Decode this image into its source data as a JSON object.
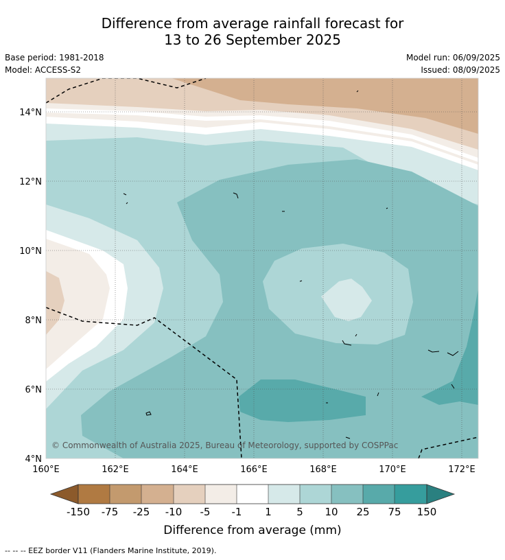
{
  "title": {
    "line1": "Difference from average rainfall forecast for",
    "line2": "13 to 26 September 2025"
  },
  "meta": {
    "base_period": "Base period: 1981-2018",
    "model": "Model: ACCESS-S2",
    "model_run": "Model run: 06/09/2025",
    "issued": "Issued: 08/09/2025"
  },
  "map": {
    "lat_ticks": [
      "4°N",
      "6°N",
      "8°N",
      "10°N",
      "12°N",
      "14°N"
    ],
    "lon_ticks": [
      "160°E",
      "162°E",
      "164°E",
      "166°E",
      "168°E",
      "170°E",
      "172°E"
    ],
    "copyright": "© Commonwealth of Australia 2025, Bureau of Meteorology, supported by COSPPac"
  },
  "legend": {
    "labels": [
      "-150",
      "-75",
      "-25",
      "-10",
      "-5",
      "-1",
      "1",
      "5",
      "10",
      "25",
      "75",
      "150"
    ],
    "colors": [
      "#8c5a2b",
      "#b07a42",
      "#c39a6e",
      "#d4b090",
      "#e5d0be",
      "#f3ede7",
      "#ffffff",
      "#d6e9e9",
      "#add6d6",
      "#86c0c0",
      "#58aaaa",
      "#369d9d",
      "#2a8080"
    ],
    "caption": "Difference from average (mm)"
  },
  "footnote": "--  --  -- EEZ border V11 (Flanders Marine Institute, 2019)."
}
